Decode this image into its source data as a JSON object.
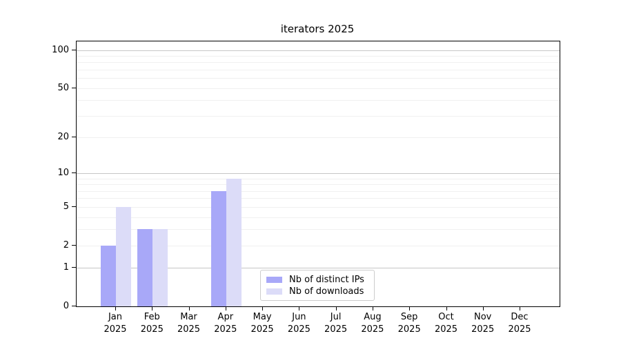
{
  "chart_data": {
    "type": "bar",
    "title": "iterators 2025",
    "categories": [
      "Jan",
      "Feb",
      "Mar",
      "Apr",
      "May",
      "Jun",
      "Jul",
      "Aug",
      "Sep",
      "Oct",
      "Nov",
      "Dec"
    ],
    "category_year": "2025",
    "series": [
      {
        "name": "Nb of distinct IPs",
        "color": "#a8a8f8",
        "values": [
          2,
          3,
          0,
          7,
          0,
          0,
          0,
          0,
          0,
          0,
          0,
          0
        ]
      },
      {
        "name": "Nb of downloads",
        "color": "#dcdcf8",
        "values": [
          5,
          3,
          0,
          9,
          0,
          0,
          0,
          0,
          0,
          0,
          0,
          0
        ]
      }
    ],
    "yscale": "log1p",
    "ylim": [
      0,
      117
    ],
    "yticks": [
      0,
      1,
      2,
      5,
      10,
      20,
      50,
      100
    ],
    "grid": {
      "major_lines": [
        1,
        10,
        100
      ],
      "minor_lines": [
        2,
        3,
        4,
        5,
        6,
        7,
        8,
        9,
        20,
        30,
        40,
        50,
        60,
        70,
        80,
        90
      ],
      "major_color": "#c6c6c6",
      "minor_color": "#f0f0f0"
    },
    "legend": {
      "position": "lower center"
    },
    "axis_color": "#000000",
    "background_color": "#ffffff"
  }
}
